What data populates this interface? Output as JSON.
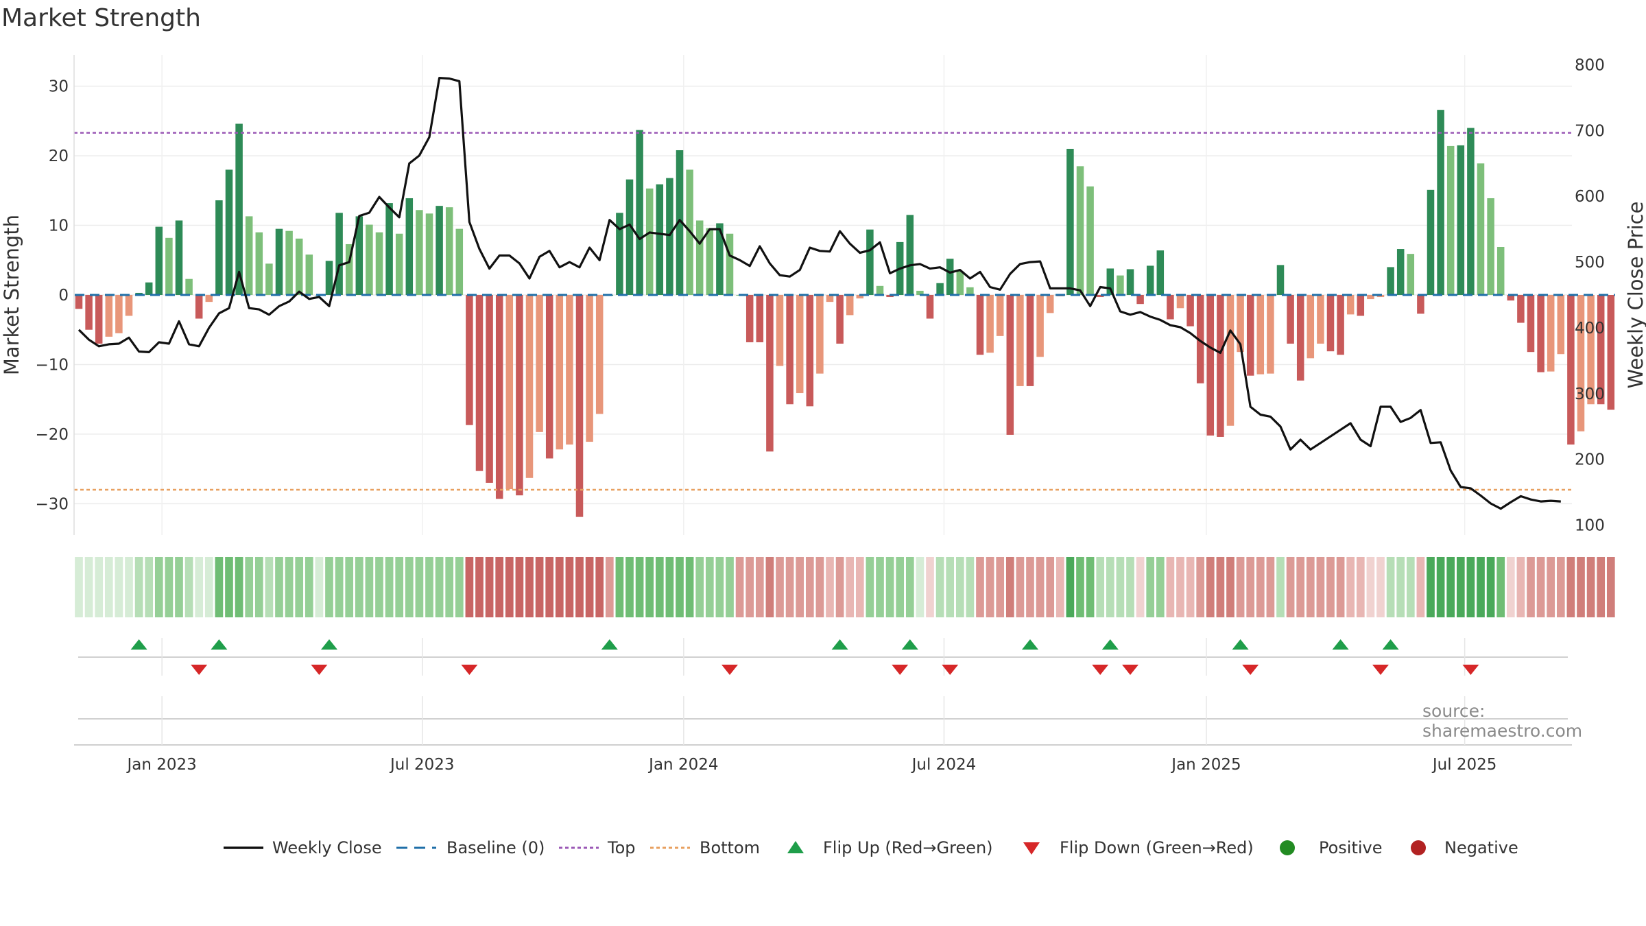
{
  "title": "Market Strength",
  "source": "source: sharemaestro.com",
  "colors": {
    "strong_green": "#2e8b57",
    "light_green": "#7dbf7a",
    "strong_red": "#c85a5a",
    "light_red": "#e8967a",
    "top_line": "#9b59b6",
    "bottom_line": "#e8a060",
    "baseline": "#1f6fa8",
    "close_line": "#111111",
    "flip_up": "#1f9e4a",
    "flip_down": "#d62728",
    "positive": "#228b22",
    "negative": "#b22222"
  },
  "chart_data": {
    "type": "bar",
    "title": "Market Strength",
    "ylabel": "Market Strength",
    "y2label": "Weekly Close Price",
    "ylim": [
      -34.5,
      34.5
    ],
    "y2lim": [
      85,
      815
    ],
    "y_ticks": [
      "30",
      "20",
      "10",
      "0",
      "−10",
      "−20",
      "−30"
    ],
    "y_tick_values": [
      30,
      20,
      10,
      0,
      -10,
      -20,
      -30
    ],
    "y2_ticks": [
      "800",
      "700",
      "600",
      "500",
      "400",
      "300",
      "200",
      "100"
    ],
    "y2_tick_values": [
      800,
      700,
      600,
      500,
      400,
      300,
      200,
      100
    ],
    "x_ticks": [
      "Jan 2023",
      "Jul 2023",
      "Jan 2024",
      "Jul 2024",
      "Jan 2025",
      "Jul 2025"
    ],
    "x_tick_weeks": [
      8.3,
      34.3,
      60.4,
      86.4,
      112.6,
      138.4
    ],
    "top_threshold": 23.3,
    "bottom_threshold": -28.0,
    "strength": [
      -2,
      -5,
      -7,
      -6,
      -5.5,
      -3,
      0.3,
      1.8,
      9.8,
      8.2,
      10.7,
      2.3,
      -3.4,
      -1,
      13.6,
      18,
      24.6,
      11.3,
      9,
      4.5,
      9.5,
      9.2,
      8.1,
      5.8,
      0,
      4.9,
      11.8,
      7.3,
      11.3,
      10.1,
      9,
      13.2,
      8.8,
      13.9,
      12.2,
      11.7,
      12.8,
      12.6,
      9.5,
      -18.7,
      -25.3,
      -27,
      -29.3,
      -27.9,
      -28.8,
      -26.3,
      -19.7,
      -23.5,
      -22.2,
      -21.5,
      -31.9,
      -21.1,
      -17.1,
      0,
      11.8,
      16.6,
      23.7,
      15.3,
      15.9,
      16.8,
      20.8,
      18,
      10.7,
      9.6,
      10.3,
      8.8,
      0,
      -6.8,
      -6.8,
      -22.5,
      -10.2,
      -15.7,
      -14.1,
      -16,
      -11.3,
      -1,
      -7,
      -2.9,
      -0.5,
      9.4,
      1.3,
      -0.3,
      7.6,
      11.5,
      0.6,
      -3.4,
      1.7,
      5.2,
      3.4,
      1.1,
      -8.6,
      -8.3,
      -5.9,
      -20.1,
      -13.1,
      -13.1,
      -8.9,
      -2.6,
      -0.2,
      21,
      18.5,
      15.6,
      -0.3,
      3.8,
      2.8,
      3.7,
      -1.3,
      4.2,
      6.4,
      -3.5,
      -1.9,
      -4.5,
      -12.7,
      -20.2,
      -20.4,
      -18.8,
      -8.2,
      -11.6,
      -11.4,
      -11.3,
      4.3,
      -7,
      -12.3,
      -9.1,
      -7,
      -8.1,
      -8.6,
      -2.8,
      -3,
      -0.6,
      -0.3,
      4,
      6.6,
      5.9,
      -2.7,
      15.1,
      26.6,
      21.4,
      21.5,
      24,
      18.9,
      13.9,
      6.9,
      -0.8,
      -4,
      -8.2,
      -11.1,
      -11,
      -8.5,
      -21.5,
      -19.6,
      -15.7,
      -15.7,
      -16.5
    ],
    "weekly_close": [
      397,
      382,
      372,
      375,
      376,
      385,
      364,
      363,
      378,
      376,
      410,
      375,
      372,
      400,
      422,
      430,
      485,
      430,
      428,
      420,
      433,
      440,
      455,
      444,
      447,
      433,
      495,
      500,
      570,
      575,
      599,
      583,
      568,
      650,
      662,
      690,
      780,
      779,
      775,
      561,
      520,
      490,
      510,
      510,
      498,
      475,
      508,
      517,
      492,
      500,
      492,
      522,
      503,
      564,
      550,
      557,
      535,
      545,
      543,
      541,
      564,
      547,
      528,
      550,
      550,
      510,
      503,
      494,
      524,
      498,
      480,
      478,
      488,
      522,
      517,
      516,
      547,
      528,
      514,
      518,
      530,
      483,
      490,
      495,
      497,
      490,
      492,
      484,
      488,
      475,
      485,
      462,
      458,
      482,
      497,
      500,
      501,
      460,
      460,
      460,
      457,
      433,
      462,
      460,
      425,
      420,
      424,
      417,
      412,
      404,
      401,
      392,
      380,
      370,
      362,
      396,
      375,
      280,
      268,
      265,
      250,
      215,
      230,
      215,
      225,
      235,
      245,
      255,
      230,
      220,
      280,
      280,
      257,
      263,
      275,
      225,
      226,
      183,
      158,
      156,
      145,
      133,
      125,
      135,
      144,
      139,
      136,
      137,
      136
    ],
    "tile_shade": [
      1,
      1,
      1,
      1,
      1,
      1,
      2,
      2,
      3,
      3,
      3,
      2,
      1,
      1,
      4,
      4,
      4,
      3,
      3,
      2,
      3,
      3,
      3,
      3,
      1,
      3,
      3,
      3,
      3,
      3,
      3,
      3,
      3,
      3,
      3,
      3,
      3,
      3,
      3,
      -5,
      -5,
      -5,
      -5,
      -5,
      -5,
      -5,
      -5,
      -5,
      -5,
      -5,
      -5,
      -5,
      -5,
      -3,
      4,
      4,
      4,
      4,
      4,
      4,
      4,
      4,
      3,
      3,
      3,
      3,
      -3,
      -3,
      -3,
      -4,
      -3,
      -3,
      -3,
      -3,
      -3,
      -2,
      -3,
      -2,
      -2,
      3,
      3,
      3,
      3,
      3,
      1,
      -1,
      2,
      2,
      2,
      2,
      -3,
      -3,
      -3,
      -4,
      -3,
      -3,
      -3,
      -3,
      -2,
      5,
      4,
      4,
      2,
      2,
      2,
      2,
      -1,
      3,
      3,
      -2,
      -2,
      -2,
      -3,
      -4,
      -4,
      -4,
      -3,
      -3,
      -3,
      -3,
      2,
      -3,
      -3,
      -3,
      -3,
      -3,
      -3,
      -2,
      -2,
      -1,
      -1,
      2,
      2,
      2,
      -2,
      5,
      5,
      5,
      5,
      5,
      5,
      5,
      4,
      -1,
      -2,
      -3,
      -3,
      -3,
      -3,
      -4,
      -4,
      -4,
      -4,
      -4
    ],
    "flip_up_weeks": [
      6,
      14,
      25,
      53,
      76,
      83,
      95,
      103,
      116,
      126,
      131
    ],
    "flip_down_weeks": [
      12,
      24,
      39,
      65,
      82,
      87,
      102,
      105,
      117,
      130,
      139
    ],
    "legend": [
      "Weekly Close",
      "Baseline (0)",
      "Top",
      "Bottom",
      "Flip Up (Red→Green)",
      "Flip Down (Green→Red)",
      "Positive",
      "Negative"
    ],
    "legend_placement": "bottom-center"
  }
}
